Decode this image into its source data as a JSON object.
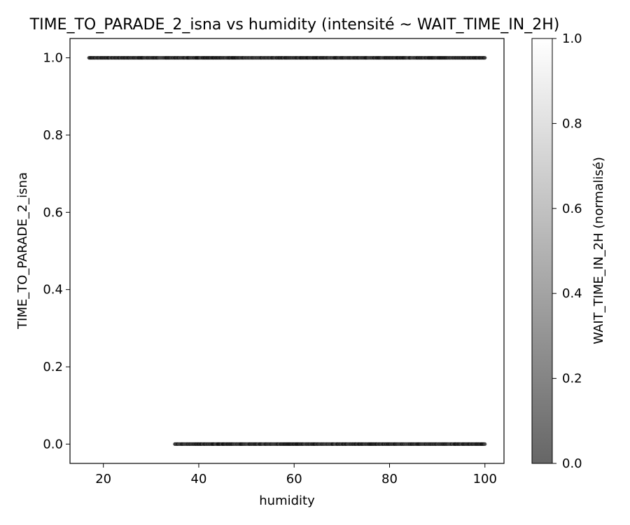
{
  "chart_data": {
    "type": "scatter",
    "title": "TIME_TO_PARADE_2_isna vs humidity (intensité ~ WAIT_TIME_IN_2H)",
    "xlabel": "humidity",
    "ylabel": "TIME_TO_PARADE_2_isna",
    "xlim": [
      13,
      104
    ],
    "ylim": [
      -0.05,
      1.05
    ],
    "xticks": [
      20,
      40,
      60,
      80,
      100
    ],
    "yticks": [
      0.0,
      0.2,
      0.4,
      0.6,
      0.8,
      1.0
    ],
    "xtick_labels": [
      "20",
      "40",
      "60",
      "80",
      "100"
    ],
    "ytick_labels": [
      "0.0",
      "0.2",
      "0.4",
      "0.6",
      "0.8",
      "1.0"
    ],
    "grid": false,
    "series": [
      {
        "y": 1.0,
        "x_range": [
          17,
          100
        ]
      },
      {
        "y": 0.0,
        "x_range": [
          35,
          100
        ]
      }
    ],
    "colorbar": {
      "label": "WAIT_TIME_IN_2H (normalisé)",
      "range": [
        0.0,
        1.0
      ],
      "ticks": [
        0.0,
        0.2,
        0.4,
        0.6,
        0.8,
        1.0
      ],
      "tick_labels": [
        "0.0",
        "0.2",
        "0.4",
        "0.6",
        "0.8",
        "1.0"
      ],
      "color_low": "#666666",
      "color_high": "#ffffff"
    }
  }
}
